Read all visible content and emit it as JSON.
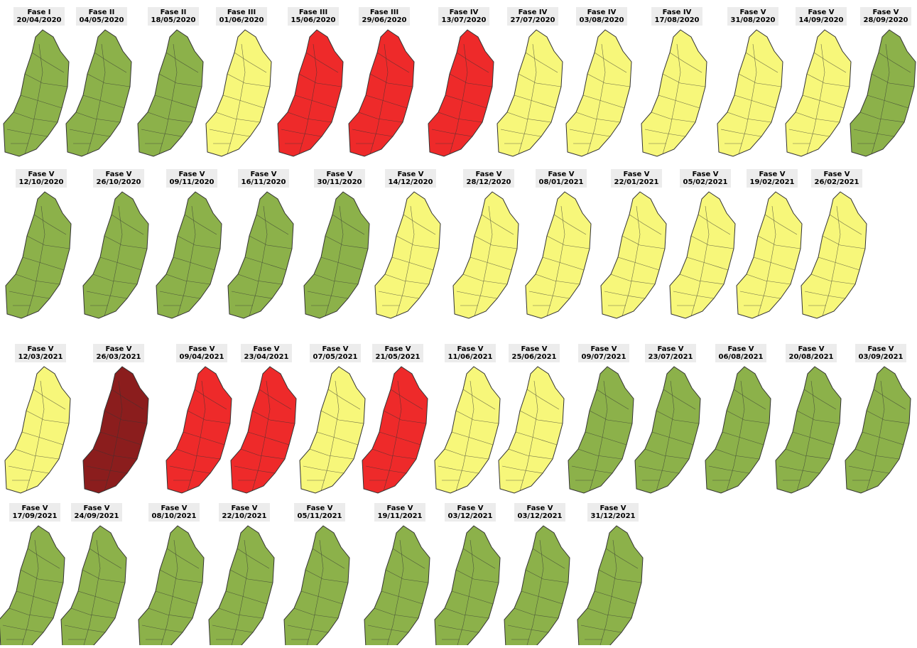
{
  "rows": [
    [
      {
        "phase": "Fase I",
        "date": "20/04/2020",
        "color": "#8cb14a"
      },
      {
        "phase": "Fase II",
        "date": "04/05/2020",
        "color": "#8cb14a"
      },
      {
        "phase": "Fase II",
        "date": "18/05/2020",
        "color": "#8cb14a"
      },
      {
        "phase": "Fase III",
        "date": "01/06/2020",
        "color": "#f7f77a"
      },
      {
        "phase": "Fase III",
        "date": "15/06/2020",
        "color": "#ee2a2a"
      },
      {
        "phase": "Fase III",
        "date": "29/06/2020",
        "color": "#ee2a2a"
      },
      {
        "phase": "Fase IV",
        "date": "13/07/2020",
        "color": "#ee2a2a"
      },
      {
        "phase": "Fase IV",
        "date": "27/07/2020",
        "color": "#f7f77a"
      },
      {
        "phase": "Fase IV",
        "date": "03/08/2020",
        "color": "#f7f77a"
      },
      {
        "phase": "Fase IV",
        "date": "17/08/2020",
        "color": "#f7f77a"
      },
      {
        "phase": "Fase V",
        "date": "31/08/2020",
        "color": "#f7f77a"
      },
      {
        "phase": "Fase V",
        "date": "14/09/2020",
        "color": "#f7f77a"
      },
      {
        "phase": "Fase V",
        "date": "28/09/2020",
        "color": "#8cb14a"
      }
    ],
    [
      {
        "phase": "Fase V",
        "date": "12/10/2020",
        "color": "#8cb14a"
      },
      {
        "phase": "Fase V",
        "date": "26/10/2020",
        "color": "#8cb14a"
      },
      {
        "phase": "Fase V",
        "date": "09/11/2020",
        "color": "#8cb14a"
      },
      {
        "phase": "Fase V",
        "date": "16/11/2020",
        "color": "#8cb14a"
      },
      {
        "phase": "Fase V",
        "date": "30/11/2020",
        "color": "#8cb14a"
      },
      {
        "phase": "Fase V",
        "date": "14/12/2020",
        "color": "#f7f77a"
      },
      {
        "phase": "Fase V",
        "date": "28/12/2020",
        "color": "#f7f77a"
      },
      {
        "phase": "Fase V",
        "date": "08/01/2021",
        "color": "#f7f77a"
      },
      {
        "phase": "Fase V",
        "date": "22/01/2021",
        "color": "#f7f77a"
      },
      {
        "phase": "Fase V",
        "date": "05/02/2021",
        "color": "#f7f77a"
      },
      {
        "phase": "Fase V",
        "date": "19/02/2021",
        "color": "#f7f77a"
      },
      {
        "phase": "Fase V",
        "date": "26/02/2021",
        "color": "#f7f77a"
      }
    ],
    [
      {
        "phase": "Fase V",
        "date": "12/03/2021",
        "color": "#f7f77a"
      },
      {
        "phase": "Fase V",
        "date": "26/03/2021",
        "color": "#8b1d1d"
      },
      {
        "phase": "Fase V",
        "date": "09/04/2021",
        "color": "#ee2a2a"
      },
      {
        "phase": "Fase V",
        "date": "23/04/2021",
        "color": "#ee2a2a"
      },
      {
        "phase": "Fase V",
        "date": "07/05/2021",
        "color": "#f7f77a"
      },
      {
        "phase": "Fase V",
        "date": "21/05/2021",
        "color": "#ee2a2a"
      },
      {
        "phase": "Fase V",
        "date": "11/06/2021",
        "color": "#f7f77a"
      },
      {
        "phase": "Fase V",
        "date": "25/06/2021",
        "color": "#f7f77a"
      },
      {
        "phase": "Fase V",
        "date": "09/07/2021",
        "color": "#8cb14a"
      },
      {
        "phase": "Fase V",
        "date": "23/07/2021",
        "color": "#8cb14a"
      },
      {
        "phase": "Fase V",
        "date": "06/08/2021",
        "color": "#8cb14a"
      },
      {
        "phase": "Fase V",
        "date": "20/08/2021",
        "color": "#8cb14a"
      },
      {
        "phase": "Fase V",
        "date": "03/09/2021",
        "color": "#8cb14a"
      }
    ],
    [
      {
        "phase": "Fase V",
        "date": "17/09/2021",
        "color": "#8cb14a"
      },
      {
        "phase": "Fase V",
        "date": "24/09/2021",
        "color": "#8cb14a"
      },
      {
        "phase": "Fase V",
        "date": "08/10/2021",
        "color": "#8cb14a"
      },
      {
        "phase": "Fase V",
        "date": "22/10/2021",
        "color": "#8cb14a"
      },
      {
        "phase": "Fase V",
        "date": "05/11/2021",
        "color": "#8cb14a"
      },
      {
        "phase": "Fase V",
        "date": "19/11/2021",
        "color": "#8cb14a"
      },
      {
        "phase": "Fase V",
        "date": "03/12/2021",
        "color": "#8cb14a"
      },
      {
        "phase": "Fase V",
        "date": "03/12/2021",
        "color": "#8cb14a"
      },
      {
        "phase": "Fase V",
        "date": "31/12/2021",
        "color": "#8cb14a"
      }
    ]
  ]
}
